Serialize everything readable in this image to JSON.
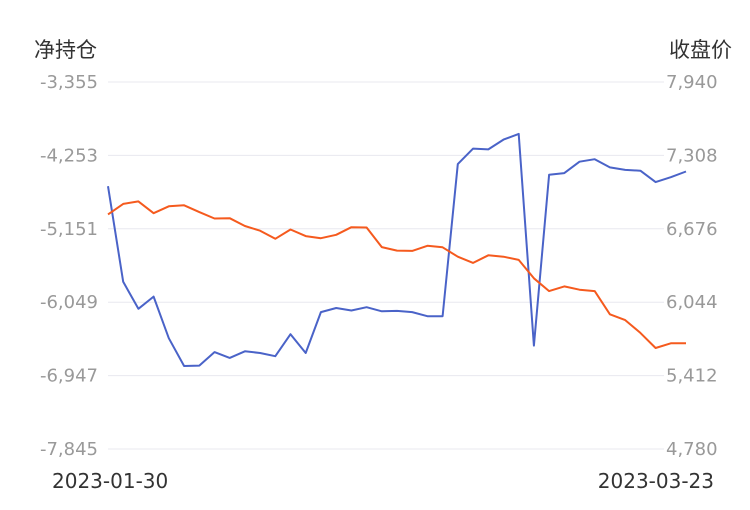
{
  "chart_data": {
    "type": "line",
    "left_axis_title": "净持仓",
    "right_axis_title": "收盘价",
    "left_ticks": [
      "-3,355",
      "-4,253",
      "-5,151",
      "-6,049",
      "-6,947",
      "-7,845"
    ],
    "right_ticks": [
      "7,940",
      "7,308",
      "6,676",
      "6,044",
      "5,412",
      "4,780"
    ],
    "left_range": [
      -7845,
      -3355
    ],
    "right_range": [
      4780,
      7940
    ],
    "x_start_label": "2023-01-30",
    "x_end_label": "2023-03-23",
    "grid": true,
    "series": [
      {
        "axis": "left",
        "color": "#4a63c8",
        "values": [
          -4630,
          -5800,
          -6130,
          -5980,
          -6490,
          -6830,
          -6825,
          -6660,
          -6730,
          -6650,
          -6670,
          -6710,
          -6440,
          -6670,
          -6170,
          -6120,
          -6150,
          -6110,
          -6160,
          -6155,
          -6170,
          -6220,
          -6220,
          -4360,
          -4170,
          -4180,
          -4060,
          -3990,
          -6580,
          -4490,
          -4470,
          -4330,
          -4300,
          -4400,
          -4430,
          -4440,
          -4580,
          -4520,
          -4450
        ]
      },
      {
        "axis": "right",
        "color": "#f55a1e",
        "values": [
          6800,
          6890,
          6912,
          6810,
          6870,
          6878,
          6820,
          6765,
          6767,
          6700,
          6660,
          6590,
          6670,
          6613,
          6595,
          6624,
          6690,
          6687,
          6518,
          6488,
          6486,
          6530,
          6517,
          6436,
          6382,
          6448,
          6436,
          6408,
          6250,
          6140,
          6180,
          6152,
          6140,
          5940,
          5890,
          5780,
          5650,
          5690,
          5690
        ]
      }
    ]
  }
}
